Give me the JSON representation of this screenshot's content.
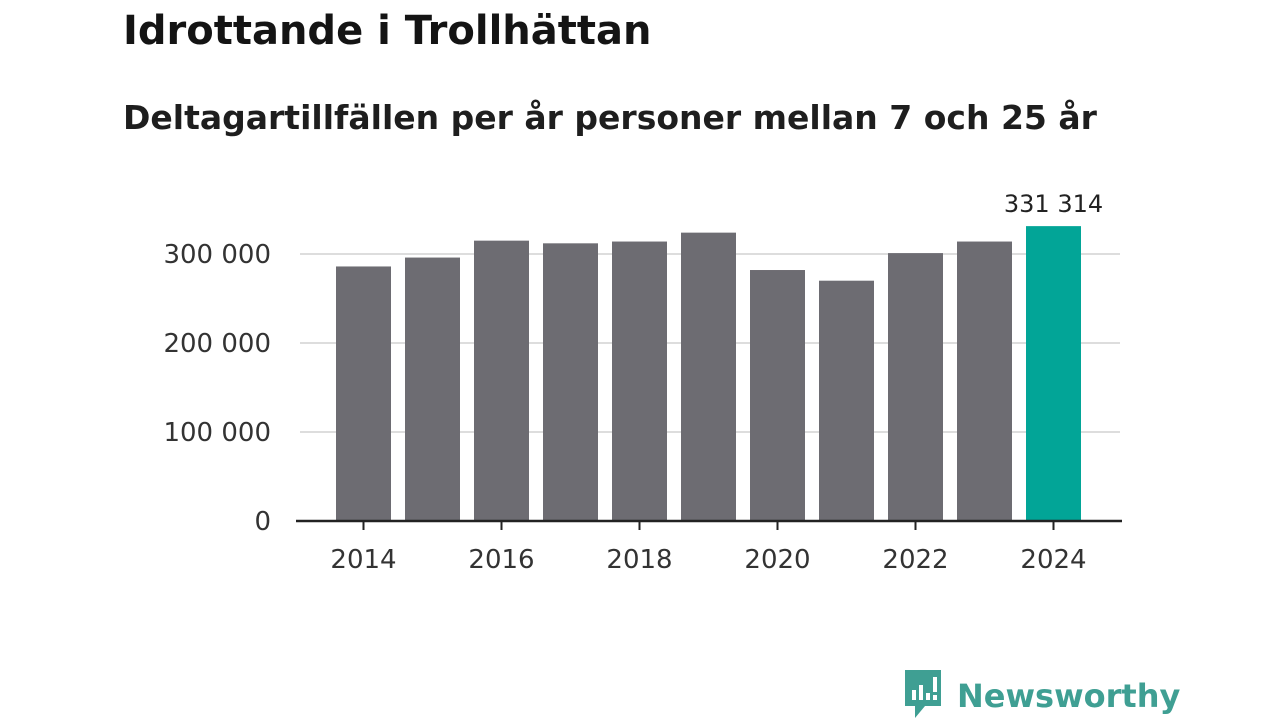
{
  "colors": {
    "bar": "#6d6c72",
    "highlight": "#02a597",
    "grid": "#dddddd",
    "axis": "#222222",
    "brand": "#3f9f93"
  },
  "brand": {
    "name": "Newsworthy",
    "icon": "newsworthy-logo-icon"
  },
  "chart_data": {
    "type": "bar",
    "title": "Idrottande i Trollhättan",
    "subtitle": "Deltagartillfällen per år personer mellan 7 och 25 år",
    "xlabel": "",
    "ylabel": "",
    "categories": [
      "2014",
      "2015",
      "2016",
      "2017",
      "2018",
      "2019",
      "2020",
      "2021",
      "2022",
      "2023",
      "2024"
    ],
    "values": [
      286000,
      296000,
      315000,
      312000,
      314000,
      324000,
      282000,
      270000,
      301000,
      314000,
      331314
    ],
    "highlight_index": 10,
    "highlight_label": "331 314",
    "ylim": [
      0,
      340000
    ],
    "yticks": [
      0,
      100000,
      200000,
      300000
    ],
    "ytick_labels": [
      "0",
      "100 000",
      "200 000",
      "300 000"
    ],
    "xticks": [
      "2014",
      "2016",
      "2018",
      "2020",
      "2022",
      "2024"
    ],
    "grid": true
  }
}
